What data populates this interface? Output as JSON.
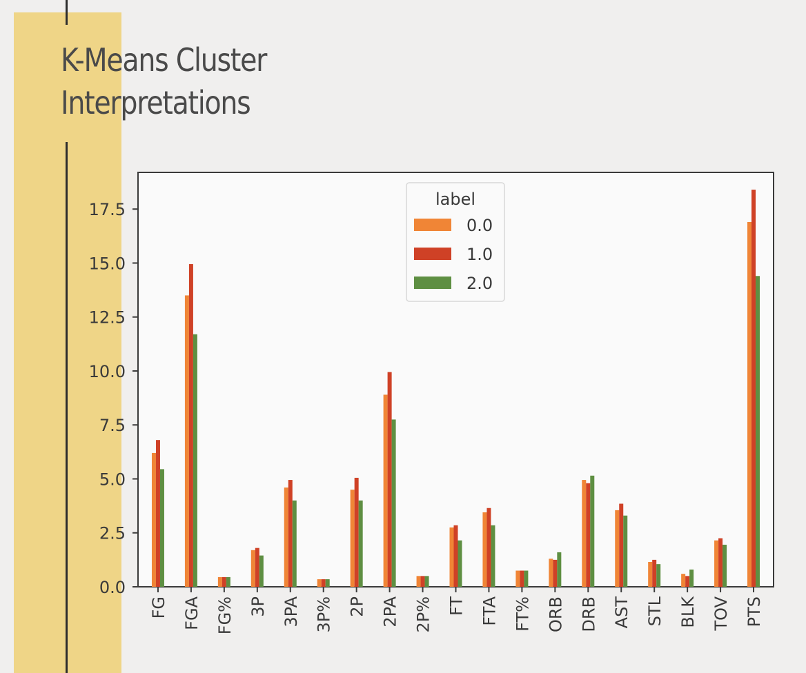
{
  "slide": {
    "title_line1": "K-Means Cluster",
    "title_line2": "Interpretations"
  },
  "colors": {
    "accent_band": "#efd587",
    "series": [
      "#f08536",
      "#cf4126",
      "#5e8f42"
    ]
  },
  "chart_data": {
    "type": "bar",
    "title": "",
    "xlabel": "",
    "ylabel": "",
    "ylim": [
      0,
      19.2
    ],
    "yticks": [
      0.0,
      2.5,
      5.0,
      7.5,
      10.0,
      12.5,
      15.0,
      17.5
    ],
    "ytick_labels": [
      "0.0",
      "2.5",
      "5.0",
      "7.5",
      "10.0",
      "12.5",
      "15.0",
      "17.5"
    ],
    "grid": false,
    "legend": {
      "title": "label",
      "placement": "top-center"
    },
    "categories": [
      "FG",
      "FGA",
      "FG%",
      "3P",
      "3PA",
      "3P%",
      "2P",
      "2PA",
      "2P%",
      "FT",
      "FTA",
      "FT%",
      "ORB",
      "DRB",
      "AST",
      "STL",
      "BLK",
      "TOV",
      "PTS"
    ],
    "series": [
      {
        "name": "0.0",
        "values": [
          6.2,
          13.5,
          0.45,
          1.7,
          4.6,
          0.35,
          4.5,
          8.9,
          0.5,
          2.75,
          3.45,
          0.75,
          1.3,
          4.95,
          3.55,
          1.15,
          0.6,
          2.15,
          16.9
        ]
      },
      {
        "name": "1.0",
        "values": [
          6.8,
          14.95,
          0.45,
          1.8,
          4.95,
          0.35,
          5.05,
          9.95,
          0.5,
          2.85,
          3.65,
          0.75,
          1.25,
          4.8,
          3.85,
          1.25,
          0.5,
          2.25,
          18.4
        ]
      },
      {
        "name": "2.0",
        "values": [
          5.45,
          11.7,
          0.45,
          1.45,
          4.0,
          0.35,
          4.0,
          7.75,
          0.5,
          2.15,
          2.85,
          0.75,
          1.6,
          5.15,
          3.3,
          1.05,
          0.8,
          1.95,
          14.4
        ]
      }
    ]
  }
}
